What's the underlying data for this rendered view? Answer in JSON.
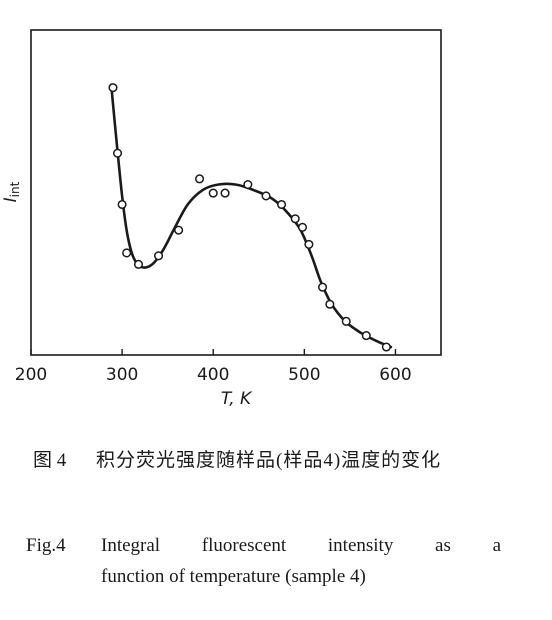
{
  "chart_data": {
    "type": "scatter",
    "xlabel": "T, K",
    "ylabel": "I",
    "ylabel_sub": "int",
    "xlim": [
      200,
      650
    ],
    "ylim": [
      0,
      100
    ],
    "xticks": [
      200,
      300,
      400,
      500,
      600
    ],
    "tick_labels": [
      "200",
      "300",
      "400",
      "500",
      "600"
    ],
    "grid": false,
    "points": [
      {
        "x": 290,
        "y": 91
      },
      {
        "x": 295,
        "y": 68
      },
      {
        "x": 300,
        "y": 50
      },
      {
        "x": 305,
        "y": 33
      },
      {
        "x": 318,
        "y": 29
      },
      {
        "x": 340,
        "y": 32
      },
      {
        "x": 362,
        "y": 41
      },
      {
        "x": 385,
        "y": 59
      },
      {
        "x": 400,
        "y": 54
      },
      {
        "x": 413,
        "y": 54
      },
      {
        "x": 438,
        "y": 57
      },
      {
        "x": 458,
        "y": 53
      },
      {
        "x": 475,
        "y": 50
      },
      {
        "x": 490,
        "y": 45
      },
      {
        "x": 498,
        "y": 42
      },
      {
        "x": 505,
        "y": 36
      },
      {
        "x": 520,
        "y": 21
      },
      {
        "x": 528,
        "y": 15
      },
      {
        "x": 546,
        "y": 9
      },
      {
        "x": 568,
        "y": 4
      },
      {
        "x": 590,
        "y": 0
      }
    ],
    "curve": [
      {
        "x": 288,
        "y": 92
      },
      {
        "x": 294,
        "y": 72
      },
      {
        "x": 300,
        "y": 53
      },
      {
        "x": 306,
        "y": 39
      },
      {
        "x": 313,
        "y": 31
      },
      {
        "x": 322,
        "y": 28
      },
      {
        "x": 333,
        "y": 29
      },
      {
        "x": 345,
        "y": 34
      },
      {
        "x": 358,
        "y": 42
      },
      {
        "x": 372,
        "y": 50
      },
      {
        "x": 388,
        "y": 55
      },
      {
        "x": 405,
        "y": 57
      },
      {
        "x": 425,
        "y": 57
      },
      {
        "x": 445,
        "y": 55
      },
      {
        "x": 465,
        "y": 52
      },
      {
        "x": 482,
        "y": 47
      },
      {
        "x": 496,
        "y": 41
      },
      {
        "x": 508,
        "y": 32
      },
      {
        "x": 518,
        "y": 23
      },
      {
        "x": 530,
        "y": 15
      },
      {
        "x": 545,
        "y": 9
      },
      {
        "x": 562,
        "y": 5
      },
      {
        "x": 580,
        "y": 2
      },
      {
        "x": 595,
        "y": 0
      }
    ]
  },
  "caption_zh": {
    "number": "图 4",
    "text": "积分荧光强度随样品(样品4)温度的变化"
  },
  "caption_en": {
    "number": "Fig.4",
    "line1": "Integral fluorescent intensity as a",
    "line2": "function of temperature (sample 4)"
  }
}
